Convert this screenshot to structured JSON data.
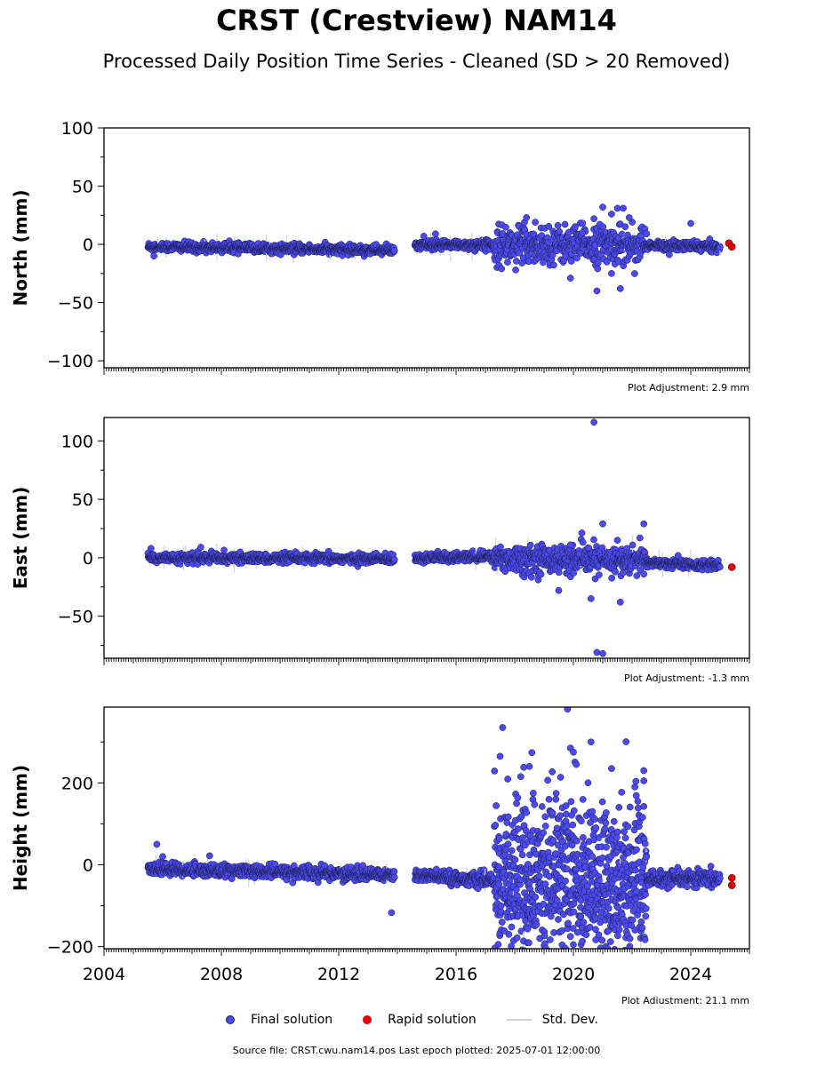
{
  "title": "CRST (Crestview) NAM14",
  "subtitle": "Processed Daily Position Time Series - Cleaned (SD > 20 Removed)",
  "chart_data": {
    "type": "scatter",
    "x_ticks": [
      "2004",
      "2008",
      "2012",
      "2016",
      "2020",
      "2024"
    ],
    "xlim": [
      2004.0,
      2026.0
    ],
    "panels": [
      {
        "ylabel": "North (mm)",
        "ylim": [
          -106,
          100
        ],
        "y_ticks": [
          100,
          50,
          0,
          -50,
          -100
        ],
        "adjustment_label": "Plot Adjustment: 2.9 mm",
        "segments": [
          {
            "start": 2005.5,
            "end": 2013.9,
            "y0": -2,
            "y1": -5,
            "scatter": 2
          },
          {
            "start": 2014.6,
            "end": 2017.3,
            "y0": -1,
            "y1": 0,
            "scatter": 2
          },
          {
            "start": 2017.3,
            "end": 2022.5,
            "y0": 0,
            "y1": 0,
            "scatter": 8
          },
          {
            "start": 2022.5,
            "end": 2025.0,
            "y0": -1,
            "y1": -2,
            "scatter": 2
          }
        ],
        "outliers": [
          [
            2005.7,
            -10
          ],
          [
            2014.9,
            7
          ],
          [
            2015.3,
            9
          ],
          [
            2018.4,
            23
          ],
          [
            2018.7,
            19
          ],
          [
            2020.3,
            10
          ],
          [
            2020.7,
            22
          ],
          [
            2020.8,
            -40
          ],
          [
            2021.0,
            32
          ],
          [
            2021.3,
            26
          ],
          [
            2021.5,
            31
          ],
          [
            2021.6,
            -38
          ],
          [
            2021.7,
            31
          ],
          [
            2021.9,
            23
          ],
          [
            2021.3,
            -25
          ],
          [
            2019.9,
            -29
          ],
          [
            2024.0,
            18
          ]
        ],
        "rapid": [
          [
            2025.3,
            1
          ],
          [
            2025.4,
            -2
          ]
        ]
      },
      {
        "ylabel": "East (mm)",
        "ylim": [
          -86,
          120
        ],
        "y_ticks": [
          100,
          50,
          0,
          -50
        ],
        "adjustment_label": "Plot Adjustment: -1.3 mm",
        "segments": [
          {
            "start": 2005.5,
            "end": 2013.9,
            "y0": 0,
            "y1": -1,
            "scatter": 2
          },
          {
            "start": 2014.6,
            "end": 2017.3,
            "y0": 0,
            "y1": 1,
            "scatter": 2
          },
          {
            "start": 2017.3,
            "end": 2022.5,
            "y0": 0,
            "y1": -3,
            "scatter": 6
          },
          {
            "start": 2022.5,
            "end": 2025.0,
            "y0": -4,
            "y1": -7,
            "scatter": 2
          }
        ],
        "outliers": [
          [
            2020.7,
            116
          ],
          [
            2020.8,
            -81
          ],
          [
            2021.0,
            -82
          ],
          [
            2021.0,
            29
          ],
          [
            2022.4,
            29
          ],
          [
            2019.5,
            -28
          ],
          [
            2020.6,
            -35
          ],
          [
            2021.6,
            -38
          ],
          [
            2005.6,
            8
          ],
          [
            2007.3,
            9
          ],
          [
            2019.9,
            11
          ],
          [
            2021.5,
            15
          ]
        ],
        "rapid": [
          [
            2025.4,
            -8
          ]
        ]
      },
      {
        "ylabel": "Height (mm)",
        "ylim": [
          -205,
          385
        ],
        "y_ticks": [
          200,
          0,
          -200
        ],
        "adjustment_label": "Plot Adjustment: 21.1 mm",
        "segments": [
          {
            "start": 2005.5,
            "end": 2013.9,
            "y0": -10,
            "y1": -25,
            "scatter": 8
          },
          {
            "start": 2014.6,
            "end": 2017.3,
            "y0": -25,
            "y1": -40,
            "scatter": 8
          },
          {
            "start": 2017.3,
            "end": 2022.5,
            "y0": -40,
            "y1": -40,
            "scatter": 90
          },
          {
            "start": 2022.5,
            "end": 2025.0,
            "y0": -35,
            "y1": -35,
            "scatter": 10
          }
        ],
        "outliers": [
          [
            2005.8,
            50
          ],
          [
            2006.0,
            20
          ],
          [
            2007.6,
            22
          ],
          [
            2013.8,
            -117
          ],
          [
            2017.5,
            265
          ],
          [
            2018.5,
            240
          ],
          [
            2019.8,
            380
          ],
          [
            2019.9,
            285
          ],
          [
            2020.0,
            275
          ],
          [
            2020.6,
            300
          ],
          [
            2021.3,
            235
          ],
          [
            2022.4,
            230
          ],
          [
            2022.4,
            205
          ],
          [
            2019.4,
            160
          ],
          [
            2020.1,
            245
          ],
          [
            2020.0,
            -195
          ],
          [
            2019.9,
            -175
          ],
          [
            2017.8,
            -170
          ]
        ],
        "rapid": [
          [
            2025.4,
            -32
          ],
          [
            2025.4,
            -50
          ]
        ]
      }
    ],
    "legend": [
      "Final solution",
      "Rapid solution",
      "Std. Dev."
    ],
    "colors": {
      "final": "#4a4af0",
      "final_edge": "#1a1a40",
      "rapid": "#e00000",
      "stddev": "#d3d3d3"
    }
  },
  "legend": {
    "final": "Final solution",
    "rapid": "Rapid solution",
    "std": "Std. Dev."
  },
  "source_line": "Source file: CRST.cwu.nam14.pos  Last epoch plotted: 2025-07-01 12:00:00"
}
